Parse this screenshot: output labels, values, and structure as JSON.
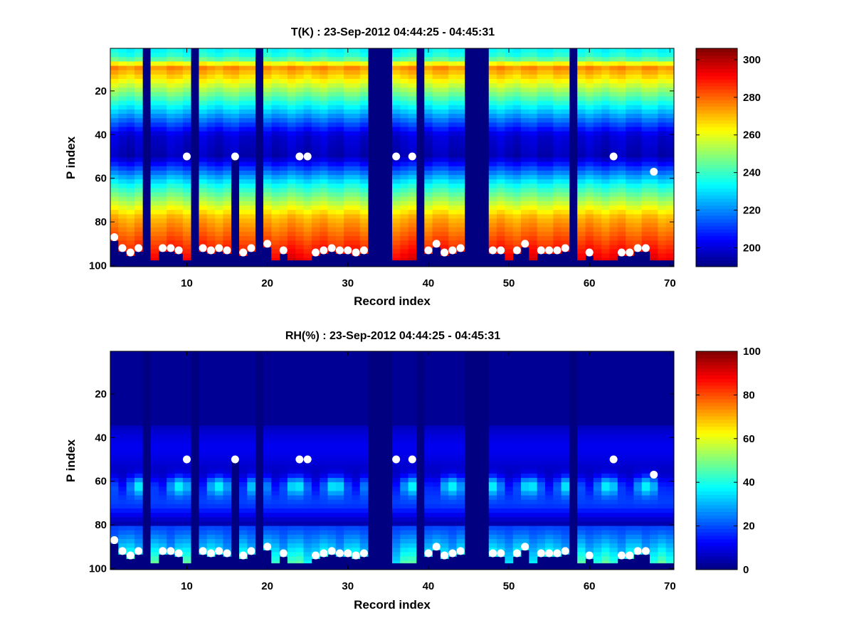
{
  "chart_data": [
    {
      "type": "heatmap",
      "title": "T(K) : 23-Sep-2012 04:44:25 - 04:45:31",
      "xlabel": "Record index",
      "ylabel": "P index",
      "xlim": [
        0.5,
        70.5
      ],
      "ylim": [
        100.5,
        0.5
      ],
      "y_reversed": true,
      "xticks": [
        "10",
        "20",
        "30",
        "40",
        "50",
        "60",
        "70"
      ],
      "yticks": [
        "20",
        "40",
        "60",
        "80",
        "100"
      ],
      "colormap": "jet",
      "colorbar": {
        "min": 190,
        "max": 306,
        "ticks": [
          "200",
          "220",
          "240",
          "260",
          "280",
          "300"
        ]
      },
      "invalid_records": [
        5,
        11,
        19,
        33,
        34,
        35,
        39,
        45,
        46,
        47,
        58
      ],
      "partial_invalid_records": [
        {
          "record": 16,
          "from_p": 50
        }
      ],
      "marker_points": [
        {
          "x": 1,
          "y": 87
        },
        {
          "x": 2,
          "y": 92
        },
        {
          "x": 3,
          "y": 94
        },
        {
          "x": 4,
          "y": 92
        },
        {
          "x": 7,
          "y": 92
        },
        {
          "x": 8,
          "y": 92
        },
        {
          "x": 9,
          "y": 93
        },
        {
          "x": 10,
          "y": 50
        },
        {
          "x": 12,
          "y": 92
        },
        {
          "x": 13,
          "y": 93
        },
        {
          "x": 14,
          "y": 92
        },
        {
          "x": 15,
          "y": 93
        },
        {
          "x": 16,
          "y": 50
        },
        {
          "x": 17,
          "y": 94
        },
        {
          "x": 18,
          "y": 92
        },
        {
          "x": 20,
          "y": 90
        },
        {
          "x": 22,
          "y": 93
        },
        {
          "x": 24,
          "y": 50
        },
        {
          "x": 25,
          "y": 50
        },
        {
          "x": 26,
          "y": 94
        },
        {
          "x": 27,
          "y": 93
        },
        {
          "x": 28,
          "y": 92
        },
        {
          "x": 29,
          "y": 93
        },
        {
          "x": 30,
          "y": 93
        },
        {
          "x": 31,
          "y": 94
        },
        {
          "x": 32,
          "y": 93
        },
        {
          "x": 36,
          "y": 50
        },
        {
          "x": 38,
          "y": 50
        },
        {
          "x": 40,
          "y": 93
        },
        {
          "x": 41,
          "y": 90
        },
        {
          "x": 42,
          "y": 94
        },
        {
          "x": 43,
          "y": 93
        },
        {
          "x": 44,
          "y": 92
        },
        {
          "x": 48,
          "y": 93
        },
        {
          "x": 49,
          "y": 93
        },
        {
          "x": 51,
          "y": 93
        },
        {
          "x": 52,
          "y": 90
        },
        {
          "x": 54,
          "y": 93
        },
        {
          "x": 55,
          "y": 93
        },
        {
          "x": 56,
          "y": 93
        },
        {
          "x": 57,
          "y": 92
        },
        {
          "x": 60,
          "y": 94
        },
        {
          "x": 63,
          "y": 50
        },
        {
          "x": 64,
          "y": 94
        },
        {
          "x": 65,
          "y": 94
        },
        {
          "x": 66,
          "y": 92
        },
        {
          "x": 67,
          "y": 92
        },
        {
          "x": 68,
          "y": 57
        }
      ]
    },
    {
      "type": "heatmap",
      "title": "RH(%) : 23-Sep-2012 04:44:25 - 04:45:31",
      "xlabel": "Record index",
      "ylabel": "P index",
      "xlim": [
        0.5,
        70.5
      ],
      "ylim": [
        100.5,
        0.5
      ],
      "y_reversed": true,
      "xticks": [
        "10",
        "20",
        "30",
        "40",
        "50",
        "60",
        "70"
      ],
      "yticks": [
        "20",
        "40",
        "60",
        "80",
        "100"
      ],
      "colormap": "jet",
      "colorbar": {
        "min": 0,
        "max": 100,
        "ticks": [
          "0",
          "20",
          "40",
          "60",
          "80",
          "100"
        ]
      },
      "invalid_records": [
        5,
        11,
        19,
        33,
        34,
        35,
        39,
        45,
        46,
        47,
        58
      ],
      "partial_invalid_records": [
        {
          "record": 16,
          "from_p": 50
        }
      ],
      "marker_points": [
        {
          "x": 1,
          "y": 87
        },
        {
          "x": 2,
          "y": 92
        },
        {
          "x": 3,
          "y": 94
        },
        {
          "x": 4,
          "y": 92
        },
        {
          "x": 7,
          "y": 92
        },
        {
          "x": 8,
          "y": 92
        },
        {
          "x": 9,
          "y": 93
        },
        {
          "x": 10,
          "y": 50
        },
        {
          "x": 12,
          "y": 92
        },
        {
          "x": 13,
          "y": 93
        },
        {
          "x": 14,
          "y": 92
        },
        {
          "x": 15,
          "y": 93
        },
        {
          "x": 16,
          "y": 50
        },
        {
          "x": 17,
          "y": 94
        },
        {
          "x": 18,
          "y": 92
        },
        {
          "x": 20,
          "y": 90
        },
        {
          "x": 22,
          "y": 93
        },
        {
          "x": 24,
          "y": 50
        },
        {
          "x": 25,
          "y": 50
        },
        {
          "x": 26,
          "y": 94
        },
        {
          "x": 27,
          "y": 93
        },
        {
          "x": 28,
          "y": 92
        },
        {
          "x": 29,
          "y": 93
        },
        {
          "x": 30,
          "y": 93
        },
        {
          "x": 31,
          "y": 94
        },
        {
          "x": 32,
          "y": 93
        },
        {
          "x": 36,
          "y": 50
        },
        {
          "x": 38,
          "y": 50
        },
        {
          "x": 40,
          "y": 93
        },
        {
          "x": 41,
          "y": 90
        },
        {
          "x": 42,
          "y": 94
        },
        {
          "x": 43,
          "y": 93
        },
        {
          "x": 44,
          "y": 92
        },
        {
          "x": 48,
          "y": 93
        },
        {
          "x": 49,
          "y": 93
        },
        {
          "x": 51,
          "y": 93
        },
        {
          "x": 52,
          "y": 90
        },
        {
          "x": 54,
          "y": 93
        },
        {
          "x": 55,
          "y": 93
        },
        {
          "x": 56,
          "y": 93
        },
        {
          "x": 57,
          "y": 92
        },
        {
          "x": 60,
          "y": 94
        },
        {
          "x": 63,
          "y": 50
        },
        {
          "x": 64,
          "y": 94
        },
        {
          "x": 65,
          "y": 94
        },
        {
          "x": 66,
          "y": 92
        },
        {
          "x": 67,
          "y": 92
        },
        {
          "x": 68,
          "y": 57
        }
      ]
    }
  ]
}
